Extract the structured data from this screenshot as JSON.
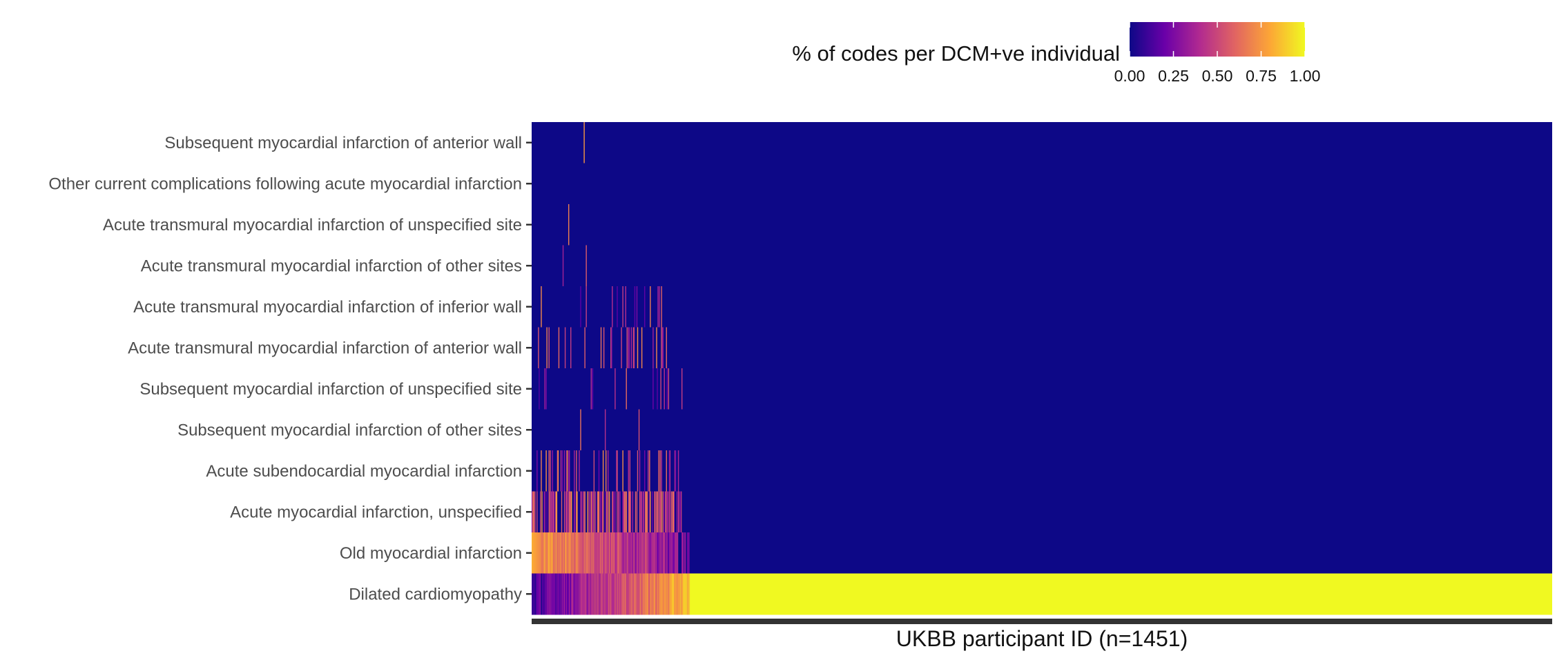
{
  "chart_data": {
    "type": "heatmap",
    "title": "",
    "xlabel": "UKBB participant ID (n=1451)",
    "ylabel": "",
    "n_participants": 1451,
    "colorbar": {
      "title": "% of codes per DCM+ve individual",
      "range": [
        0,
        1
      ],
      "ticks": [
        "0.00",
        "0.25",
        "0.50",
        "0.75",
        "1.00"
      ],
      "palette": "plasma",
      "colors": [
        "#0d0887",
        "#6a00a8",
        "#b12a90",
        "#e16462",
        "#fca636",
        "#f0f921"
      ],
      "placement": "top-right"
    },
    "rows": [
      "Subsequent myocardial infarction of anterior wall",
      "Other current complications following acute myocardial infarction",
      "Acute transmural myocardial infarction of unspecified site",
      "Acute transmural myocardial infarction of other sites",
      "Acute transmural myocardial infarction of inferior wall",
      "Acute transmural myocardial infarction of anterior wall",
      "Subsequent myocardial infarction of unspecified site",
      "Subsequent myocardial infarction of other sites",
      "Acute subendocardial myocardial infarction",
      "Acute myocardial infarction, unspecified",
      "Old myocardial infarction",
      "Dilated cardiomyopathy"
    ],
    "row_density": [
      0.005,
      0.008,
      0.01,
      0.02,
      0.07,
      0.1,
      0.08,
      0.015,
      0.18,
      0.55,
      0.95,
      1.0
    ],
    "mixed_fraction": 0.155,
    "background_value": 0.0,
    "dcm_only_value": 1.0
  }
}
